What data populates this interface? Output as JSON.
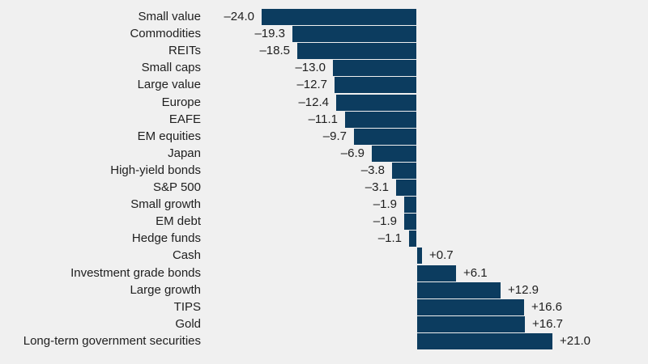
{
  "chart_data": {
    "type": "bar",
    "orientation": "horizontal",
    "title": "",
    "xlabel": "",
    "ylabel": "",
    "axis_visible": false,
    "grid": false,
    "legend": "none",
    "xlim": [
      -24.0,
      21.0
    ],
    "bar_color": "#0c3c5f",
    "background_color": "#f0f0f0",
    "text_color": "#202020",
    "categories": [
      "Small value",
      "Commodities",
      "REITs",
      "Small caps",
      "Large value",
      "Europe",
      "EAFE",
      "EM equities",
      "Japan",
      "High-yield bonds",
      "S&P 500",
      "Small growth",
      "EM debt",
      "Hedge funds",
      "Cash",
      "Investment grade bonds",
      "Large growth",
      "TIPS",
      "Gold",
      "Long-term government securities"
    ],
    "values": [
      -24.0,
      -19.3,
      -18.5,
      -13.0,
      -12.7,
      -12.4,
      -11.1,
      -9.7,
      -6.9,
      -3.8,
      -3.1,
      -1.9,
      -1.9,
      -1.1,
      0.7,
      6.1,
      12.9,
      16.6,
      16.7,
      21.0
    ],
    "rows": [
      {
        "label": "Small value",
        "value": -24.0,
        "display": "–24.0"
      },
      {
        "label": "Commodities",
        "value": -19.3,
        "display": "–19.3"
      },
      {
        "label": "REITs",
        "value": -18.5,
        "display": "–18.5"
      },
      {
        "label": "Small caps",
        "value": -13.0,
        "display": "–13.0"
      },
      {
        "label": "Large value",
        "value": -12.7,
        "display": "–12.7"
      },
      {
        "label": "Europe",
        "value": -12.4,
        "display": "–12.4"
      },
      {
        "label": "EAFE",
        "value": -11.1,
        "display": "–11.1"
      },
      {
        "label": "EM equities",
        "value": -9.7,
        "display": "–9.7"
      },
      {
        "label": "Japan",
        "value": -6.9,
        "display": "–6.9"
      },
      {
        "label": "High-yield bonds",
        "value": -3.8,
        "display": "–3.8"
      },
      {
        "label": "S&P 500",
        "value": -3.1,
        "display": "–3.1"
      },
      {
        "label": "Small growth",
        "value": -1.9,
        "display": "–1.9"
      },
      {
        "label": "EM debt",
        "value": -1.9,
        "display": "–1.9"
      },
      {
        "label": "Hedge funds",
        "value": -1.1,
        "display": "–1.1"
      },
      {
        "label": "Cash",
        "value": 0.7,
        "display": "+0.7"
      },
      {
        "label": "Investment grade bonds",
        "value": 6.1,
        "display": "+6.1"
      },
      {
        "label": "Large growth",
        "value": 12.9,
        "display": "+12.9"
      },
      {
        "label": "TIPS",
        "value": 16.6,
        "display": "+16.6"
      },
      {
        "label": "Gold",
        "value": 16.7,
        "display": "+16.7"
      },
      {
        "label": "Long-term government securities",
        "value": 21.0,
        "display": "+21.0"
      }
    ]
  }
}
